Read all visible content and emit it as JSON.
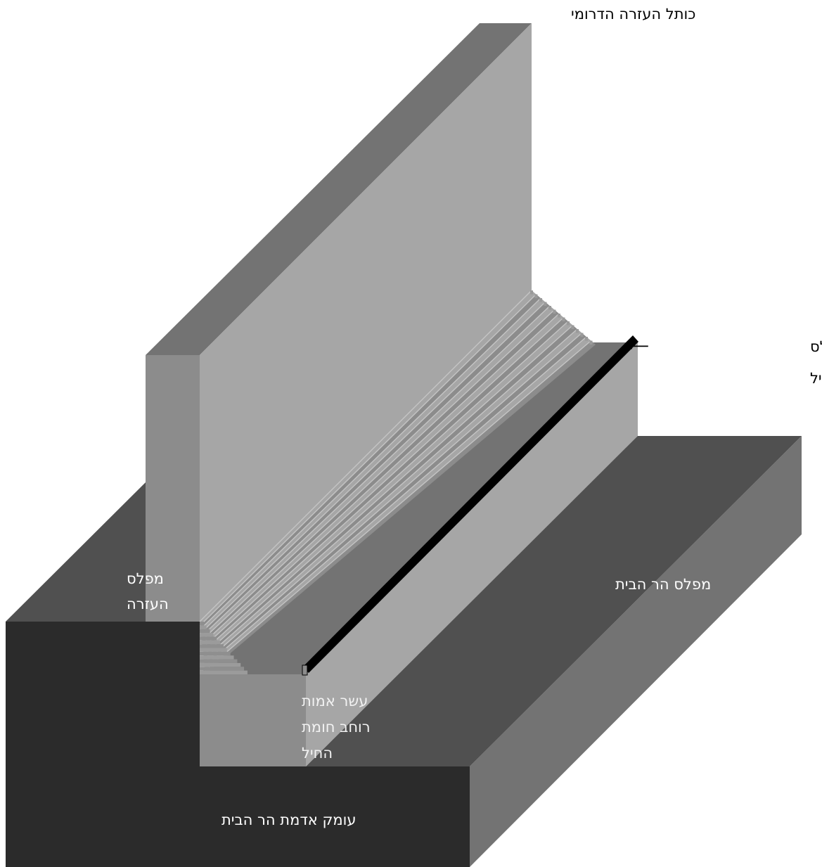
{
  "labels": {
    "southern_azarah_wall": "כותל העזרה הדרומי",
    "soreg_level_line1": "מפלס הסורג במפלס",
    "soreg_level_line2": "שבתחתית מדרגות החיל",
    "arrow_symbol": "⟵",
    "azarah_level_line1": "מפלס",
    "azarah_level_line2": "העזרה",
    "temple_mount_level": "מפלס הר הבית",
    "chel_wall_width_line1": "עשר אמות",
    "chel_wall_width_line2": "רוחב חומת",
    "chel_wall_width_line3": "החיל",
    "temple_mount_ground_depth": "עומק אדמת הר הבית"
  },
  "colors": {
    "background": "#ffffff",
    "darkest": "#2b2b2b",
    "dark_top": "#505050",
    "mid_top": "#737373",
    "wall_face": "#a6a6a6",
    "wall_side": "#8c8c8c",
    "step_lines": "#bdbdbd",
    "soreg_line": "#000000",
    "text_dark": "#000000",
    "text_light": "#ffffff"
  }
}
